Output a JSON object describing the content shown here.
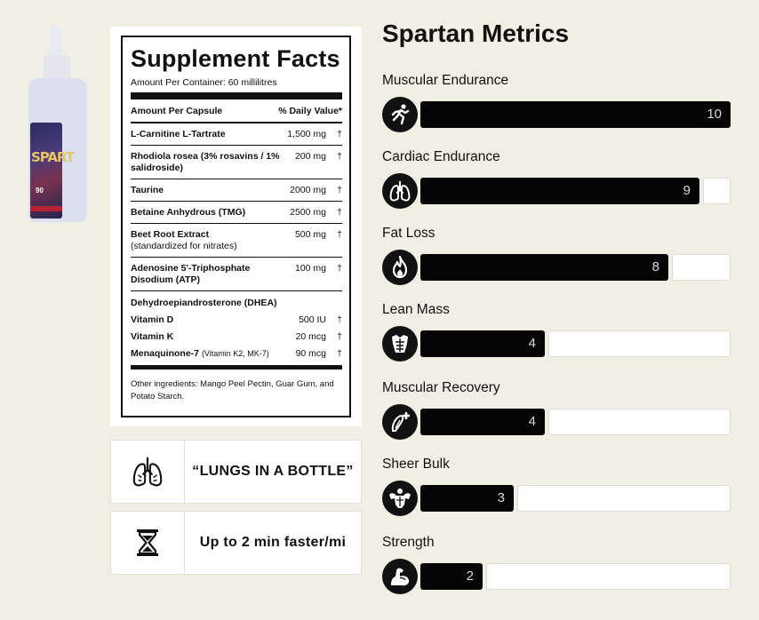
{
  "product": {
    "brand_text": "SPART",
    "label_number": "90"
  },
  "supplement_facts": {
    "title": "Supplement Facts",
    "amount_per_container": "Amount Per Container: 60 millilitres",
    "header_left": "Amount Per Capsule",
    "header_right": "% Daily Value*",
    "rows": [
      {
        "name": "L-Carnitine L-Tartrate",
        "amount": "1,500 mg",
        "dv": "†"
      },
      {
        "name": "Rhodiola rosea (3% rosavins / 1% salidroside)",
        "amount": "200 mg",
        "dv": "†"
      },
      {
        "name": "Taurine",
        "amount": "2000 mg",
        "dv": "†"
      },
      {
        "name": "Betaine Anhydrous (TMG)",
        "amount": "2500 mg",
        "dv": "†"
      },
      {
        "name": "Beet Root Extract",
        "sub": "(standardized for nitrates)",
        "amount": "500 mg",
        "dv": "†"
      },
      {
        "name": "Adenosine 5'-Triphosphate Disodium (ATP)",
        "amount": "100 mg",
        "dv": "†"
      }
    ],
    "group_title": "Dehydroepiandrosterone (DHEA)",
    "group_rows": [
      {
        "name": "Vitamin D",
        "amount": "500 IU",
        "dv": "†"
      },
      {
        "name": "Vitamin K",
        "amount": "20 mcg",
        "dv": "†"
      },
      {
        "name": "Menaquinone-7",
        "note": "(Vitamin K2, MK-7)",
        "amount": "90 mcg",
        "dv": "†"
      }
    ],
    "other_ingredients": "Other ingredients: Mango Peel Pectin, Guar Gum, and Potato Starch."
  },
  "callouts": [
    {
      "icon": "lungs-icon",
      "text": "“LUNGS IN A BOTTLE”"
    },
    {
      "icon": "hourglass-icon",
      "text": "Up to 2 min faster/mi"
    }
  ],
  "metrics": {
    "title": "Spartan Metrics",
    "max": 10,
    "items": [
      {
        "label": "Muscular Endurance",
        "value": 10,
        "icon": "running-figure-icon"
      },
      {
        "label": "Cardiac Endurance",
        "value": 9,
        "icon": "lungs-icon"
      },
      {
        "label": "Fat Loss",
        "value": 8,
        "icon": "flame-icon"
      },
      {
        "label": "Lean Mass",
        "value": 4,
        "icon": "torso-icon"
      },
      {
        "label": "Muscular Recovery",
        "value": 4,
        "icon": "muscle-plus-icon"
      },
      {
        "label": "Sheer Bulk",
        "value": 3,
        "icon": "bodybuilder-icon"
      },
      {
        "label": "Strength",
        "value": 2,
        "icon": "flexed-arm-icon"
      }
    ]
  }
}
